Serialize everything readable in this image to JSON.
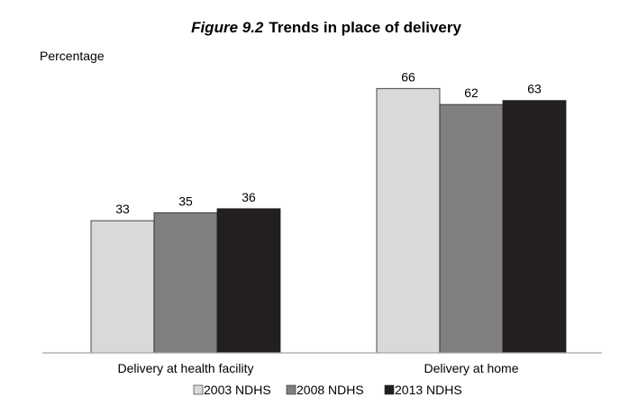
{
  "chart_data": {
    "type": "bar",
    "title_prefix": "Figure 9.2",
    "title": "Trends in place of delivery",
    "ylabel": "Percentage",
    "xlabel": "",
    "categories": [
      "Delivery at health facility",
      "Delivery at home"
    ],
    "series": [
      {
        "name": "2003 NDHS",
        "values": [
          33,
          66
        ],
        "color": "#d9d9db"
      },
      {
        "name": "2008 NDHS",
        "values": [
          35,
          62
        ],
        "color": "#808083"
      },
      {
        "name": "2013 NDHS",
        "values": [
          36,
          63
        ],
        "color": "#231f20"
      }
    ],
    "ylim": [
      0,
      80
    ],
    "grid": false,
    "legend_position": "bottom",
    "bar_border_color": "#231f20",
    "axis_color": "#a6a6a6"
  }
}
